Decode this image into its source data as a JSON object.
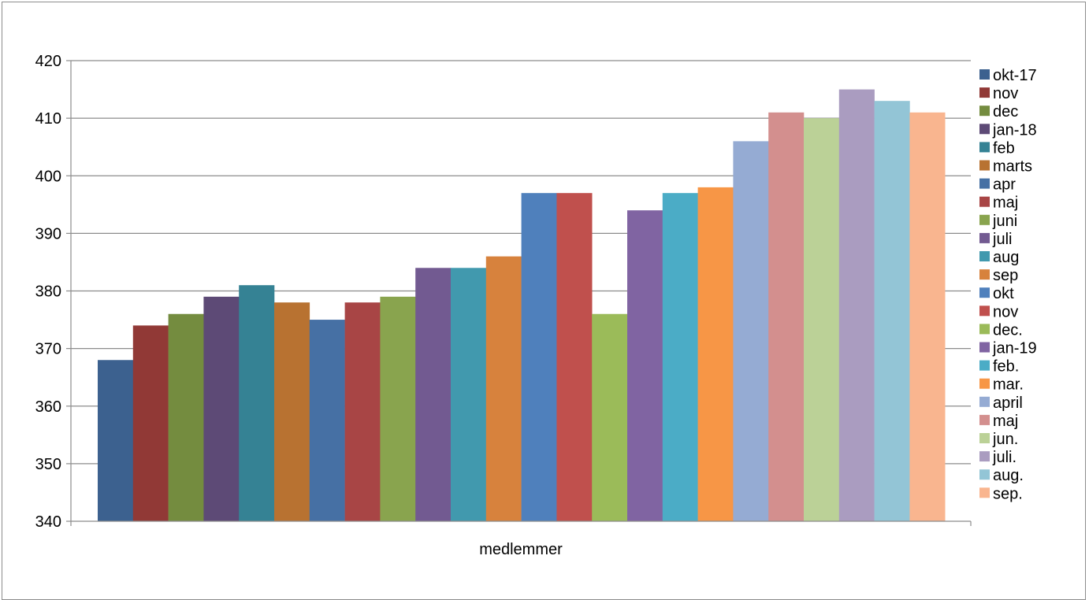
{
  "chart_data": {
    "type": "bar",
    "categories": [
      "medlemmer"
    ],
    "xlabel": "",
    "ylabel": "",
    "ylim": [
      340,
      420
    ],
    "yticks": [
      340,
      350,
      360,
      370,
      380,
      390,
      400,
      410,
      420
    ],
    "grid": true,
    "legend_position": "right",
    "series": [
      {
        "name": "okt-17",
        "values": [
          368
        ],
        "color": "#3c618f"
      },
      {
        "name": "nov",
        "values": [
          374
        ],
        "color": "#913936"
      },
      {
        "name": "dec",
        "values": [
          376
        ],
        "color": "#748c3f"
      },
      {
        "name": "jan-18",
        "values": [
          379
        ],
        "color": "#5d4a76"
      },
      {
        "name": "feb",
        "values": [
          381
        ],
        "color": "#358294"
      },
      {
        "name": "marts",
        "values": [
          378
        ],
        "color": "#b87231"
      },
      {
        "name": "apr",
        "values": [
          375
        ],
        "color": "#4670a4"
      },
      {
        "name": "maj",
        "values": [
          378
        ],
        "color": "#a84545"
      },
      {
        "name": "juni",
        "values": [
          379
        ],
        "color": "#89a44e"
      },
      {
        "name": "juli",
        "values": [
          384
        ],
        "color": "#725a91"
      },
      {
        "name": "aug",
        "values": [
          384
        ],
        "color": "#4199ae"
      },
      {
        "name": "sep",
        "values": [
          386
        ],
        "color": "#d7823d"
      },
      {
        "name": "okt",
        "values": [
          397
        ],
        "color": "#4f80bc"
      },
      {
        "name": "nov",
        "values": [
          397
        ],
        "color": "#c0504d"
      },
      {
        "name": "dec.",
        "values": [
          376
        ],
        "color": "#9bbb59"
      },
      {
        "name": "jan-19",
        "values": [
          394
        ],
        "color": "#8064a2"
      },
      {
        "name": "feb.",
        "values": [
          397
        ],
        "color": "#4bacc6"
      },
      {
        "name": "mar.",
        "values": [
          398
        ],
        "color": "#f79646"
      },
      {
        "name": "april",
        "values": [
          406
        ],
        "color": "#95abd3"
      },
      {
        "name": "maj",
        "values": [
          411
        ],
        "color": "#d38f8e"
      },
      {
        "name": "jun.",
        "values": [
          410
        ],
        "color": "#bbd197"
      },
      {
        "name": "juli.",
        "values": [
          415
        ],
        "color": "#aa9cc0"
      },
      {
        "name": "aug.",
        "values": [
          413
        ],
        "color": "#93c5d6"
      },
      {
        "name": "sep.",
        "values": [
          411
        ],
        "color": "#f9b58f"
      }
    ]
  }
}
